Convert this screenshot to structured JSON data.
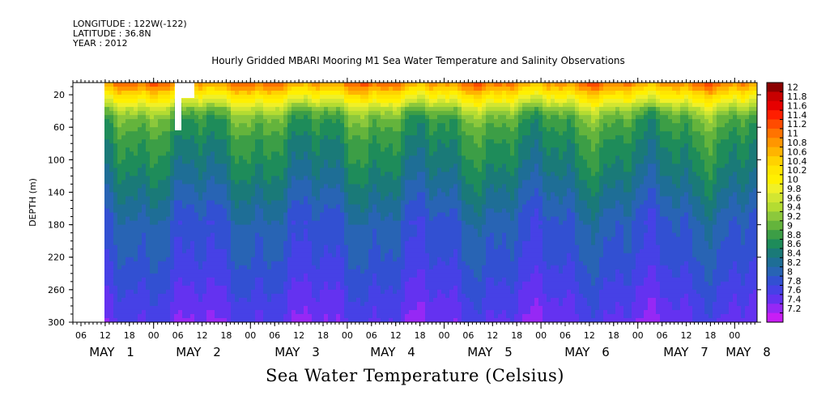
{
  "header": {
    "longitude": "LONGITUDE : 122W(-122)",
    "latitude": "LATITUDE : 36.8N",
    "year": "YEAR : 2012"
  },
  "chart_data": {
    "type": "heatmap",
    "title": "Hourly Gridded MBARI Mooring M1 Sea Water Temperature and Salinity Observations",
    "xlabel": "Sea Water Temperature (Celsius)",
    "ylabel": "DEPTH (m)",
    "ylim": [
      300,
      5
    ],
    "y_ticks": [
      20,
      60,
      100,
      140,
      180,
      220,
      260,
      300
    ],
    "x_hour_ticks": [
      "06",
      "12",
      "18",
      "00",
      "06",
      "12",
      "18",
      "00",
      "06",
      "12",
      "18",
      "00",
      "06",
      "12",
      "18",
      "00",
      "06",
      "12",
      "18",
      "00",
      "06",
      "12",
      "18",
      "00",
      "06",
      "12",
      "18",
      "00",
      "06",
      "12",
      "18",
      "00"
    ],
    "x_day_labels": [
      "MAY 1",
      "MAY 2",
      "MAY 3",
      "MAY 4",
      "MAY 5",
      "MAY 6",
      "MAY 7",
      "MAY 8"
    ],
    "colorbar": {
      "levels": [
        "12",
        "11.8",
        "11.6",
        "11.4",
        "11.2",
        "11",
        "10.8",
        "10.6",
        "10.4",
        "10.2",
        "10",
        "9.8",
        "9.6",
        "9.4",
        "9.2",
        "9",
        "8.8",
        "8.6",
        "8.4",
        "8.2",
        "8",
        "7.8",
        "7.6",
        "7.4",
        "7.2"
      ],
      "colors": [
        "#8b0000",
        "#c80000",
        "#e60000",
        "#ff1e00",
        "#ff4b00",
        "#ff7300",
        "#ff9600",
        "#ffb400",
        "#ffd200",
        "#ffe600",
        "#fff000",
        "#f0f028",
        "#d2e632",
        "#b4dc32",
        "#8cc83c",
        "#64b43c",
        "#3c9e46",
        "#1e8c5a",
        "#1a7a78",
        "#1e6e96",
        "#2864b4",
        "#3250d2",
        "#4641e6",
        "#6432f0",
        "#9628f5",
        "#c81ef5"
      ]
    },
    "profile": {
      "depths": [
        5,
        10,
        15,
        20,
        25,
        30,
        35,
        40,
        50,
        60,
        70,
        80,
        90,
        100,
        120,
        140,
        160,
        180,
        200,
        220,
        240,
        260,
        280,
        300
      ],
      "temperature": [
        11.0,
        10.8,
        10.5,
        10.2,
        10.0,
        9.8,
        9.5,
        9.3,
        9.0,
        8.9,
        8.8,
        8.7,
        8.65,
        8.6,
        8.45,
        8.3,
        8.15,
        8.0,
        7.95,
        7.9,
        7.8,
        7.7,
        7.6,
        7.5
      ]
    }
  }
}
